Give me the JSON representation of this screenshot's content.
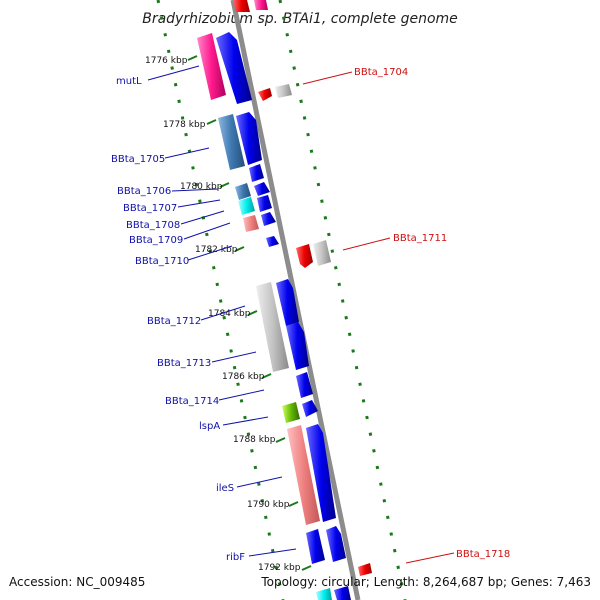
{
  "title": "Bradyrhizobium sp. BTAi1, complete genome",
  "footer": {
    "accession": "Accession: NC_009485",
    "topology": "Topology: circular; Length: 8,264,687 bp; Genes: 7,463"
  },
  "kbp_labels": [
    "1776 kbp",
    "1778 kbp",
    "1780 kbp",
    "1782 kbp",
    "1784 kbp",
    "1786 kbp",
    "1788 kbp",
    "1790 kbp",
    "1792 kbp"
  ],
  "gene_labels_left": [
    "mutL",
    "BBta_1705",
    "BBta_1706",
    "BBta_1707",
    "BBta_1708",
    "BBta_1709",
    "BBta_1710",
    "BBta_1712",
    "BBta_1713",
    "BBta_1714",
    "lspA",
    "ileS",
    "ribF"
  ],
  "gene_labels_right": [
    "BBta_1704",
    "BBta_1711",
    "BBta_1718"
  ],
  "colors": {
    "backbone": "#888888",
    "gc_ticks": "#1a7a1a",
    "cds_forward": "#0000e6",
    "cds_reverse_red": "#e60000",
    "label_blue": "#1111aa",
    "label_red": "#cc1111"
  }
}
